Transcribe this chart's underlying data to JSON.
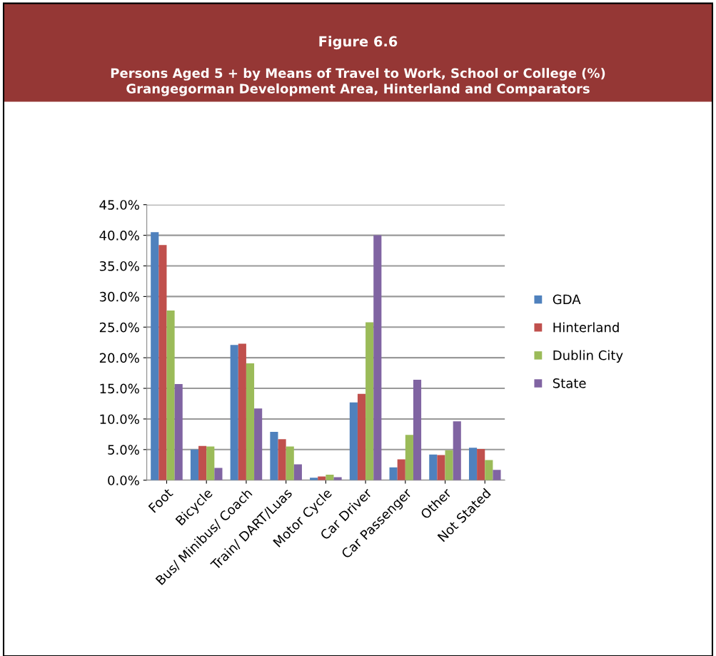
{
  "chart_data": {
    "type": "bar",
    "title": "Figure 6.6",
    "subtitle": "Persons Aged 5 + by Means of Travel to Work, School or College (%)\nGrangegorman Development Area, Hinterland and Comparators",
    "categories": [
      "Foot",
      "Bicycle",
      "Bus/ Minibus/ Coach",
      "Train/ DART/Luas",
      "Motor Cycle",
      "Car Driver",
      "Car Passenger",
      "Other",
      "Not Stated"
    ],
    "series": [
      {
        "name": "GDA",
        "color": "#4f81bd",
        "values": [
          40.5,
          5.0,
          22.1,
          7.9,
          0.4,
          12.7,
          2.1,
          4.2,
          5.3
        ]
      },
      {
        "name": "Hinterland",
        "color": "#c0504d",
        "values": [
          38.4,
          5.6,
          22.3,
          6.7,
          0.6,
          14.1,
          3.4,
          4.1,
          5.1
        ]
      },
      {
        "name": "Dublin City",
        "color": "#9bbb59",
        "values": [
          27.7,
          5.5,
          19.1,
          5.5,
          0.9,
          25.8,
          7.4,
          4.9,
          3.3
        ]
      },
      {
        "name": "State",
        "color": "#8064a2",
        "values": [
          15.7,
          2.0,
          11.7,
          2.6,
          0.5,
          40.0,
          16.4,
          9.6,
          1.7
        ]
      }
    ],
    "ylim": [
      0,
      45
    ],
    "yticks": [
      {
        "value": 0,
        "label": "0.0%"
      },
      {
        "value": 5,
        "label": "5.0%"
      },
      {
        "value": 10,
        "label": "10.0%"
      },
      {
        "value": 15,
        "label": "15.0%"
      },
      {
        "value": 20,
        "label": "20.0%"
      },
      {
        "value": 25,
        "label": "25.0%"
      },
      {
        "value": 30,
        "label": "30.0%"
      },
      {
        "value": 35,
        "label": "35.0%"
      },
      {
        "value": 40,
        "label": "40.0%"
      },
      {
        "value": 45,
        "label": "45.0%"
      }
    ],
    "grid": "y",
    "legend": "right"
  }
}
